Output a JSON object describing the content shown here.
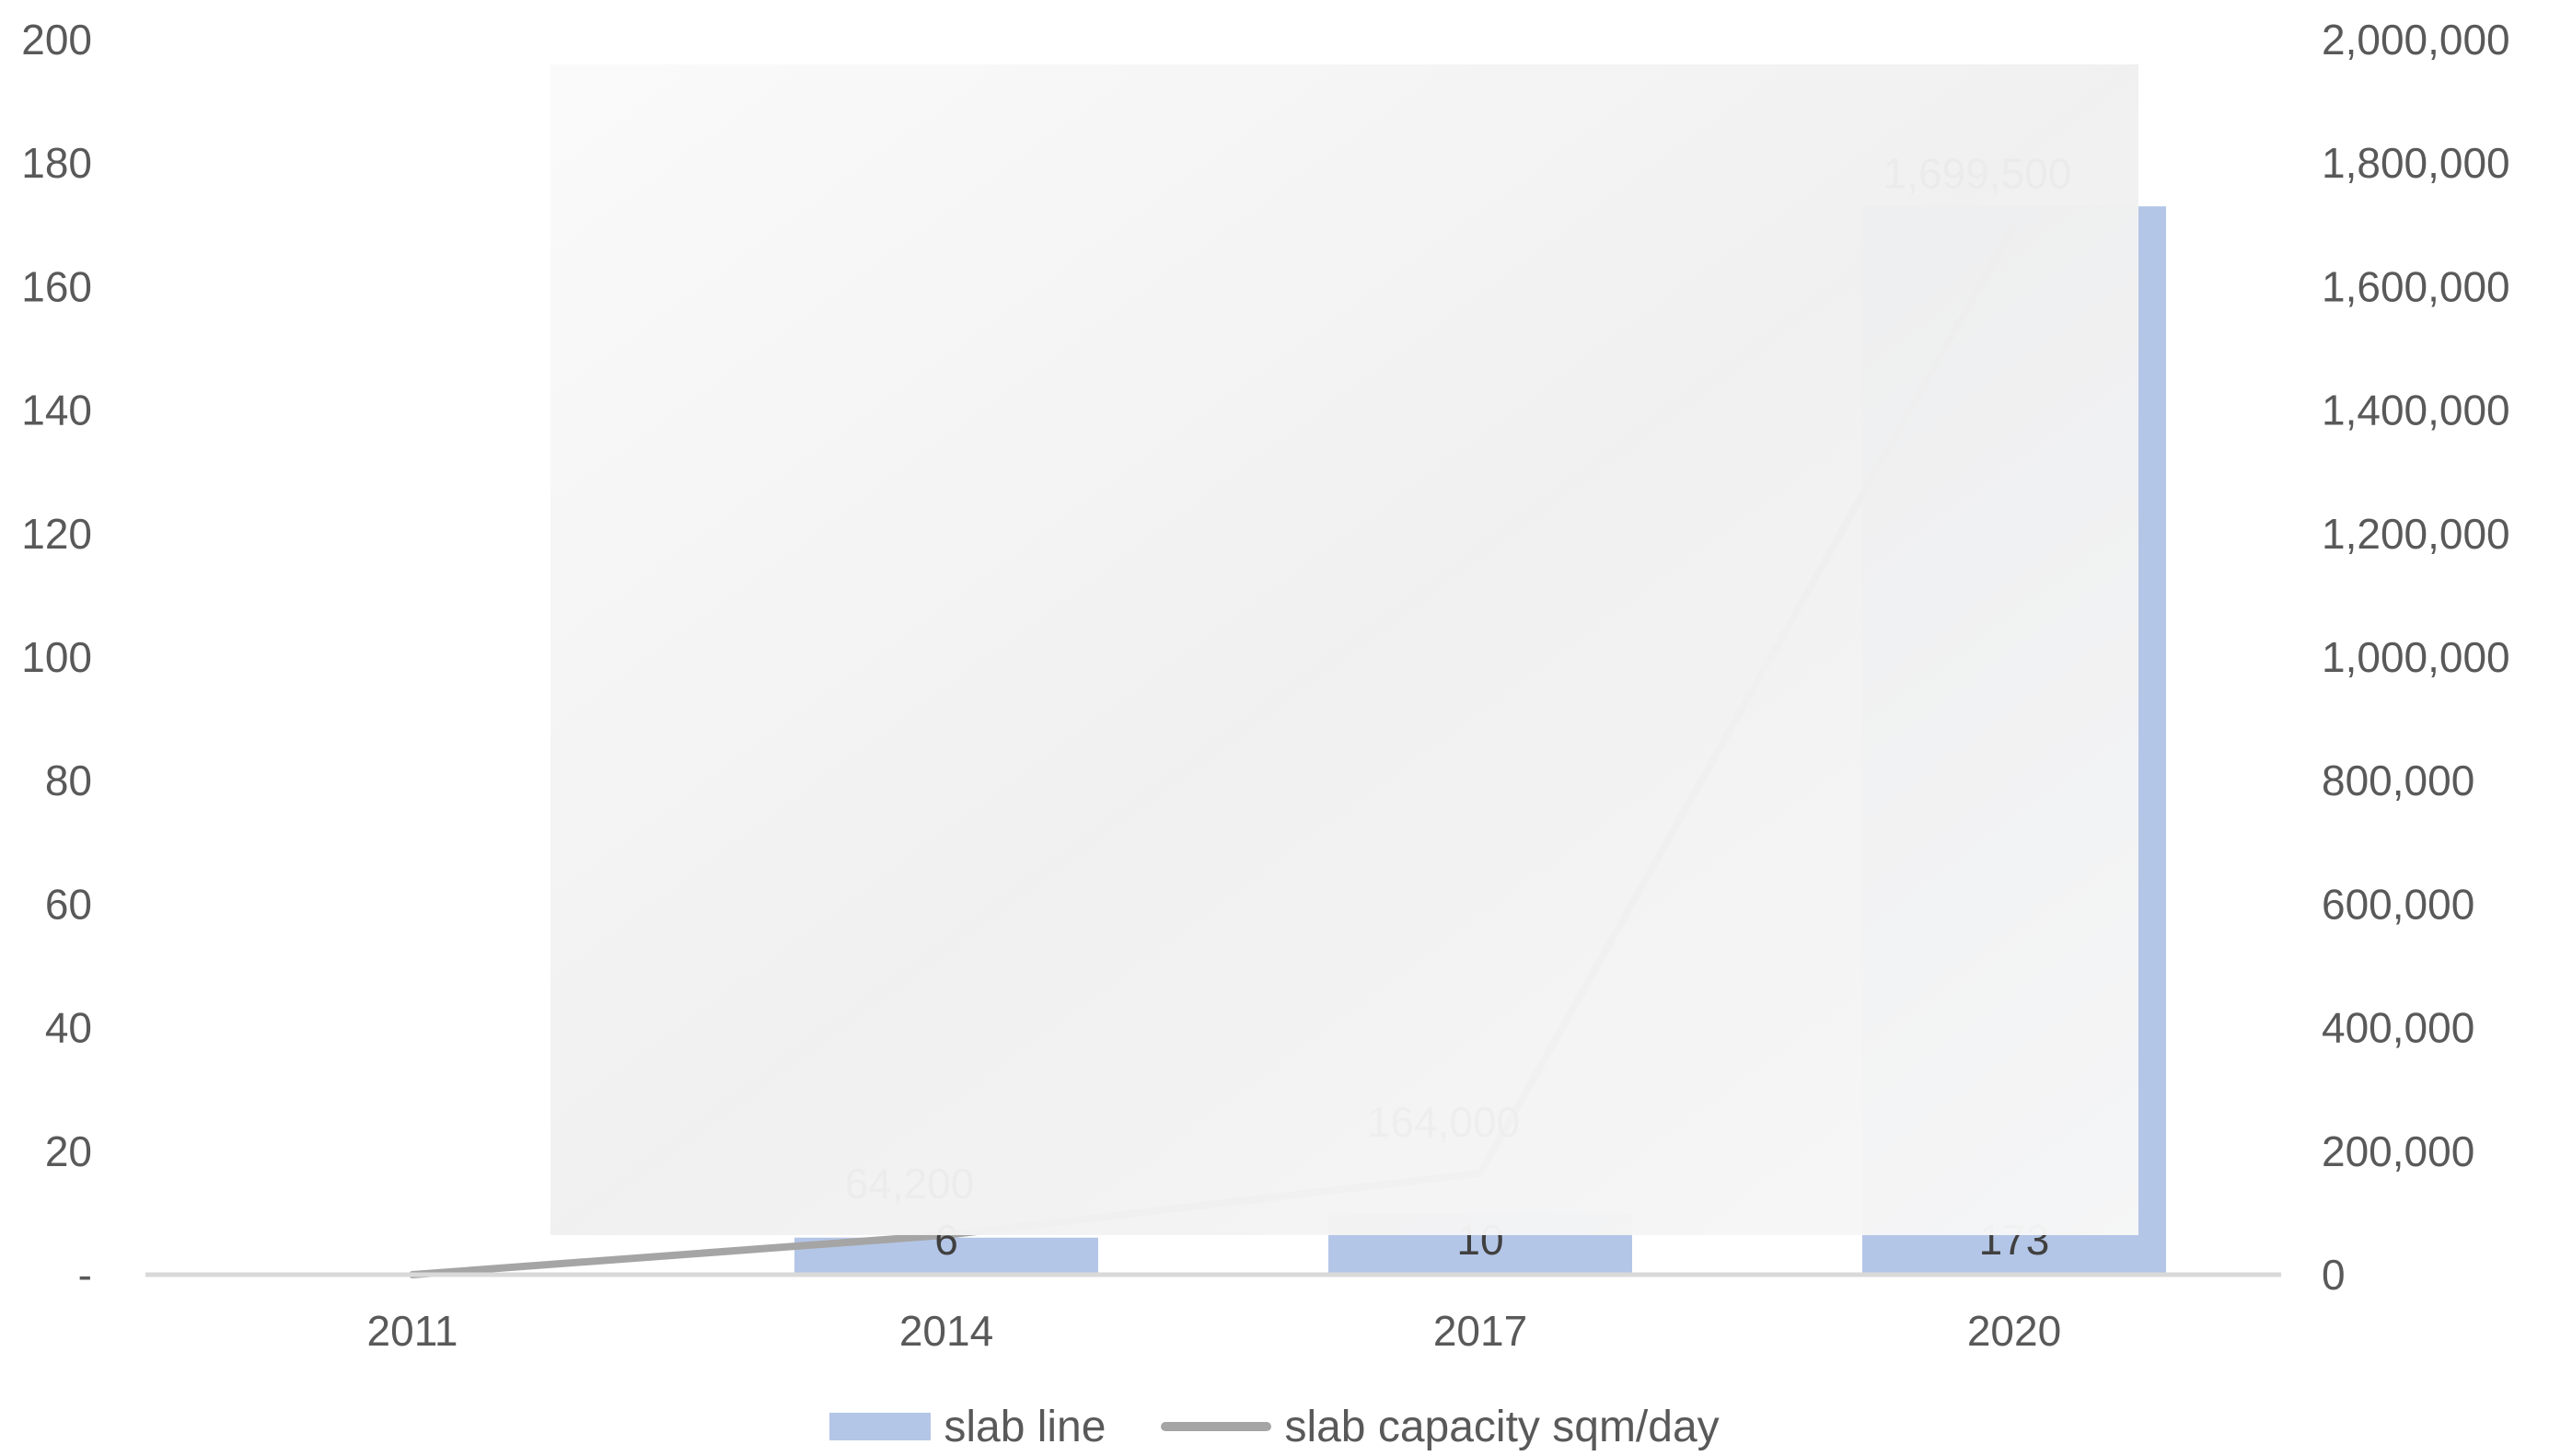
{
  "chart_data": {
    "type": "bar",
    "categories": [
      "2011",
      "2014",
      "2017",
      "2020"
    ],
    "series": [
      {
        "name": "slab line",
        "kind": "bar",
        "axis": "left",
        "values": [
          0,
          6,
          10,
          173
        ],
        "labels": [
          "",
          "6",
          "10",
          "173"
        ],
        "color": "#b4c6e7"
      },
      {
        "name": "slab capacity sqm/day",
        "kind": "line",
        "axis": "right",
        "values": [
          0,
          64200,
          164000,
          1699500
        ],
        "labels": [
          "",
          "64,200",
          "164,000",
          "1,699,500"
        ],
        "color": "#a5a5a5"
      }
    ],
    "y_left": {
      "range": [
        0,
        200
      ],
      "ticks": [
        "-",
        "20",
        "40",
        "60",
        "80",
        "100",
        "120",
        "140",
        "160",
        "180",
        "200"
      ]
    },
    "y_right": {
      "range": [
        0,
        2000000
      ],
      "ticks": [
        "0",
        "200,000",
        "400,000",
        "600,000",
        "800,000",
        "1,000,000",
        "1,200,000",
        "1,400,000",
        "1,600,000",
        "1,800,000",
        "2,000,000"
      ]
    },
    "grid": false,
    "legend_position": "bottom",
    "overlay": {
      "description": "semi-opaque white panel partially obscuring the plot",
      "color": "#f3f3f3"
    }
  }
}
